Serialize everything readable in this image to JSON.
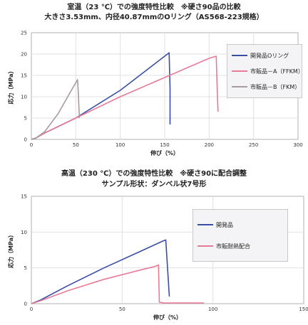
{
  "chart_data": [
    {
      "type": "line",
      "title": "室温（23 ℃）での強度特性比較　※硬さ90品の比較",
      "subtitle": "大きさ3.53mm、内径40.87mmのOリング（AS568-223規格）",
      "xlabel": "伸び（%）",
      "ylabel": "応力（MPa）",
      "xlim": [
        0,
        300
      ],
      "ylim": [
        0,
        25
      ],
      "xticks": [
        "0",
        "50",
        "100",
        "150",
        "200",
        "250",
        "300"
      ],
      "yticks": [
        "0",
        "5",
        "10",
        "15",
        "20",
        "25"
      ],
      "grid": true,
      "legend_position": "right",
      "series": [
        {
          "name": "開発品Oリング",
          "color": "#3a4fa3",
          "x": [
            0,
            5,
            15,
            50,
            100,
            150,
            155,
            156,
            156
          ],
          "y": [
            0,
            0.3,
            1.5,
            5,
            11.5,
            19.5,
            20.3,
            12,
            3.5
          ]
        },
        {
          "name": "市販品－A（FFKM）",
          "color": "#e87a98",
          "x": [
            0,
            5,
            15,
            50,
            100,
            150,
            200,
            208,
            209,
            210
          ],
          "y": [
            0,
            0.3,
            1.5,
            5,
            10,
            14.5,
            19,
            19.5,
            12,
            6.5
          ]
        },
        {
          "name": "市販品－B（FKM）",
          "color": "#a89aa0",
          "x": [
            0,
            5,
            15,
            30,
            45,
            52,
            53,
            54
          ],
          "y": [
            0,
            0.3,
            1.8,
            6,
            11.5,
            14,
            10,
            5
          ]
        }
      ]
    },
    {
      "type": "line",
      "title": "高温（230 ℃）での強度特性比較　※硬さ90に配合調整",
      "subtitle": "サンプル形状：ダンベル状7号形",
      "xlabel": "伸び（%）",
      "ylabel": "応力（MPa）",
      "xlim": [
        0,
        150
      ],
      "ylim": [
        0,
        15
      ],
      "xticks": [
        "0",
        "50",
        "100",
        "150"
      ],
      "yticks": [
        "0",
        "5",
        "10",
        "15"
      ],
      "grid": true,
      "legend_position": "right",
      "series": [
        {
          "name": "開発品",
          "color": "#3a4fa3",
          "x": [
            0,
            5,
            20,
            40,
            60,
            72,
            74,
            75,
            76
          ],
          "y": [
            0,
            0.5,
            2.5,
            5,
            7.3,
            8.7,
            8.9,
            5,
            1
          ]
        },
        {
          "name": "市販耐熱配合",
          "color": "#e87a98",
          "x": [
            0,
            5,
            20,
            40,
            60,
            68,
            70,
            70.5,
            73,
            95
          ],
          "y": [
            0,
            0.4,
            1.8,
            3.4,
            4.7,
            5.2,
            5.4,
            0.2,
            0.1,
            0.1
          ]
        }
      ]
    }
  ]
}
